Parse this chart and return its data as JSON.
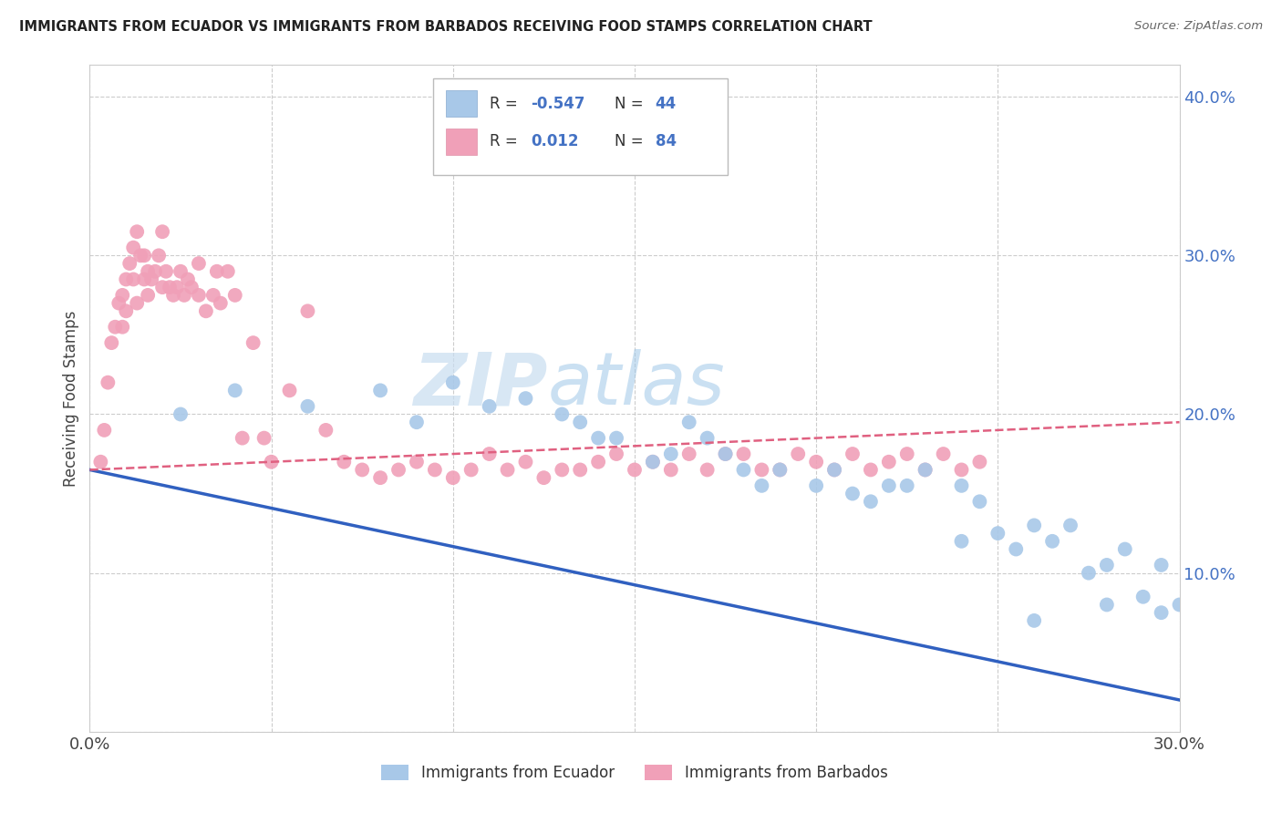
{
  "title": "IMMIGRANTS FROM ECUADOR VS IMMIGRANTS FROM BARBADOS RECEIVING FOOD STAMPS CORRELATION CHART",
  "source": "Source: ZipAtlas.com",
  "ylabel": "Receiving Food Stamps",
  "xlim": [
    0.0,
    0.3
  ],
  "ylim": [
    0.0,
    0.42
  ],
  "xticks": [
    0.0,
    0.05,
    0.1,
    0.15,
    0.2,
    0.25,
    0.3
  ],
  "xtick_labels": [
    "0.0%",
    "",
    "",
    "",
    "",
    "",
    "30.0%"
  ],
  "yticks": [
    0.0,
    0.1,
    0.2,
    0.3,
    0.4
  ],
  "ytick_labels": [
    "",
    "10.0%",
    "20.0%",
    "30.0%",
    "40.0%"
  ],
  "color_blue": "#a8c8e8",
  "color_pink": "#f0a0b8",
  "color_blue_line": "#3060c0",
  "color_pink_line": "#e06080",
  "watermark_zip": "ZIP",
  "watermark_atlas": "atlas",
  "legend_label1": "Immigrants from Ecuador",
  "legend_label2": "Immigrants from Barbados",
  "ecuador_x": [
    0.025,
    0.04,
    0.06,
    0.08,
    0.09,
    0.1,
    0.11,
    0.12,
    0.13,
    0.135,
    0.14,
    0.145,
    0.155,
    0.16,
    0.165,
    0.17,
    0.175,
    0.18,
    0.185,
    0.19,
    0.2,
    0.205,
    0.21,
    0.215,
    0.22,
    0.225,
    0.23,
    0.24,
    0.245,
    0.25,
    0.255,
    0.26,
    0.265,
    0.27,
    0.275,
    0.28,
    0.285,
    0.29,
    0.295,
    0.3,
    0.295,
    0.28,
    0.26,
    0.24
  ],
  "ecuador_y": [
    0.2,
    0.215,
    0.205,
    0.215,
    0.195,
    0.22,
    0.205,
    0.21,
    0.2,
    0.195,
    0.185,
    0.185,
    0.17,
    0.175,
    0.195,
    0.185,
    0.175,
    0.165,
    0.155,
    0.165,
    0.155,
    0.165,
    0.15,
    0.145,
    0.155,
    0.155,
    0.165,
    0.155,
    0.145,
    0.125,
    0.115,
    0.13,
    0.12,
    0.13,
    0.1,
    0.105,
    0.115,
    0.085,
    0.105,
    0.08,
    0.075,
    0.08,
    0.07,
    0.12
  ],
  "barbados_x": [
    0.003,
    0.004,
    0.005,
    0.006,
    0.007,
    0.008,
    0.009,
    0.009,
    0.01,
    0.01,
    0.011,
    0.012,
    0.012,
    0.013,
    0.013,
    0.014,
    0.015,
    0.015,
    0.016,
    0.016,
    0.017,
    0.018,
    0.019,
    0.02,
    0.02,
    0.021,
    0.022,
    0.023,
    0.024,
    0.025,
    0.026,
    0.027,
    0.028,
    0.03,
    0.03,
    0.032,
    0.034,
    0.035,
    0.036,
    0.038,
    0.04,
    0.042,
    0.045,
    0.048,
    0.05,
    0.055,
    0.06,
    0.065,
    0.07,
    0.075,
    0.08,
    0.085,
    0.09,
    0.095,
    0.1,
    0.105,
    0.11,
    0.115,
    0.12,
    0.125,
    0.13,
    0.135,
    0.14,
    0.145,
    0.15,
    0.155,
    0.16,
    0.165,
    0.17,
    0.175,
    0.18,
    0.185,
    0.19,
    0.195,
    0.2,
    0.205,
    0.21,
    0.215,
    0.22,
    0.225,
    0.23,
    0.235,
    0.24,
    0.245
  ],
  "barbados_y": [
    0.17,
    0.19,
    0.22,
    0.245,
    0.255,
    0.27,
    0.275,
    0.255,
    0.265,
    0.285,
    0.295,
    0.305,
    0.285,
    0.315,
    0.27,
    0.3,
    0.285,
    0.3,
    0.29,
    0.275,
    0.285,
    0.29,
    0.3,
    0.315,
    0.28,
    0.29,
    0.28,
    0.275,
    0.28,
    0.29,
    0.275,
    0.285,
    0.28,
    0.275,
    0.295,
    0.265,
    0.275,
    0.29,
    0.27,
    0.29,
    0.275,
    0.185,
    0.245,
    0.185,
    0.17,
    0.215,
    0.265,
    0.19,
    0.17,
    0.165,
    0.16,
    0.165,
    0.17,
    0.165,
    0.16,
    0.165,
    0.175,
    0.165,
    0.17,
    0.16,
    0.165,
    0.165,
    0.17,
    0.175,
    0.165,
    0.17,
    0.165,
    0.175,
    0.165,
    0.175,
    0.175,
    0.165,
    0.165,
    0.175,
    0.17,
    0.165,
    0.175,
    0.165,
    0.17,
    0.175,
    0.165,
    0.175,
    0.165,
    0.17
  ],
  "ecu_line_x": [
    0.0,
    0.3
  ],
  "ecu_line_y": [
    0.165,
    0.02
  ],
  "bar_line_x": [
    0.0,
    0.3
  ],
  "bar_line_y": [
    0.165,
    0.195
  ]
}
